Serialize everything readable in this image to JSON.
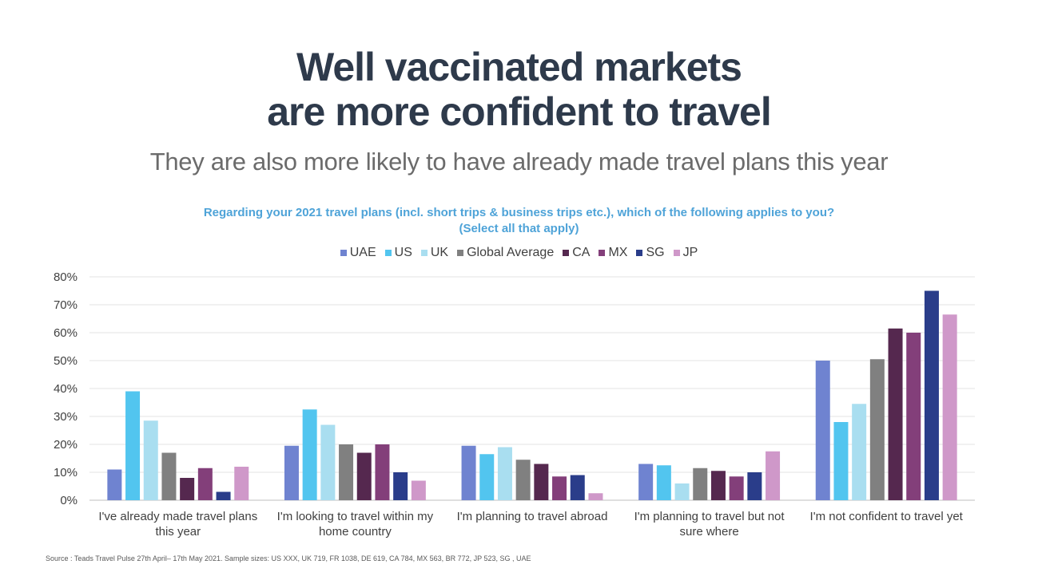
{
  "title_line1": "Well vaccinated markets",
  "title_line2": "are more confident to travel",
  "subtitle": "They are also more likely to have already made travel plans this year",
  "question_line1": "Regarding your 2021 travel plans (incl. short trips & business trips etc.), which of the following applies to you?",
  "question_line2": "(Select all that apply)",
  "source": "Source : Teads Travel Pulse 27th April– 17th May 2021. Sample sizes: US XXX, UK 719, FR 1038, DE 619, CA 784, MX 563, BR 772, JP 523, SG , UAE",
  "chart_data": {
    "type": "bar",
    "categories": [
      [
        "I've already made travel plans",
        "this year"
      ],
      [
        "I'm looking to travel within my",
        "home country"
      ],
      [
        "I'm planning to travel abroad"
      ],
      [
        "I'm planning to travel but not",
        "sure where"
      ],
      [
        "I'm not confident to travel yet"
      ]
    ],
    "series": [
      {
        "name": "UAE",
        "color": "#6f83d0",
        "values": [
          11,
          19.5,
          19.5,
          13,
          50
        ]
      },
      {
        "name": "US",
        "color": "#52c5ef",
        "values": [
          39,
          32.5,
          16.5,
          12.5,
          28
        ]
      },
      {
        "name": "UK",
        "color": "#a9def0",
        "values": [
          28.5,
          27,
          19,
          6,
          34.5
        ]
      },
      {
        "name": "Global Average",
        "color": "#808080",
        "values": [
          17,
          20,
          14.5,
          11.5,
          50.5
        ]
      },
      {
        "name": "CA",
        "color": "#55284f",
        "values": [
          8,
          17,
          13,
          10.5,
          61.5
        ]
      },
      {
        "name": "MX",
        "color": "#833f7a",
        "values": [
          11.5,
          20,
          8.5,
          8.5,
          60
        ]
      },
      {
        "name": "SG",
        "color": "#2a3d8a",
        "values": [
          3,
          10,
          9,
          10,
          75
        ]
      },
      {
        "name": "JP",
        "color": "#cf98c9",
        "values": [
          12,
          7,
          2.5,
          17.5,
          66.5
        ]
      }
    ],
    "ylim": [
      0,
      80
    ],
    "yticks": [
      "0%",
      "10%",
      "20%",
      "30%",
      "40%",
      "50%",
      "60%",
      "70%",
      "80%"
    ],
    "grid": true,
    "legend_position": "top"
  }
}
